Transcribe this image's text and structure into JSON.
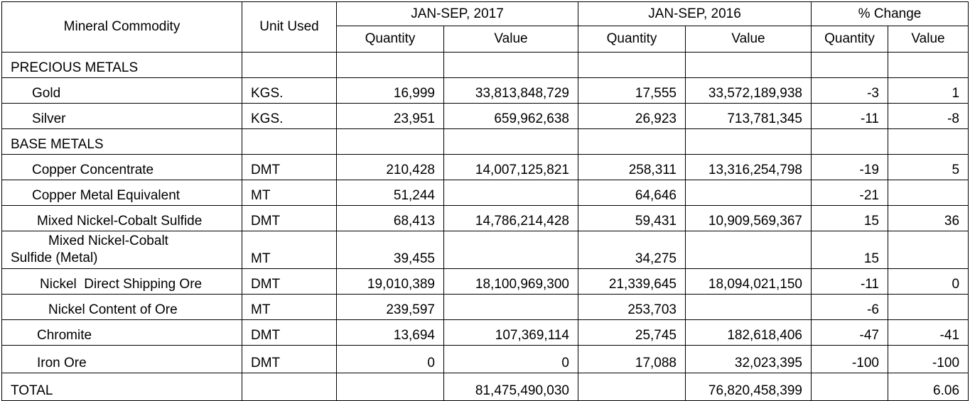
{
  "header": {
    "mineral_commodity": "Mineral Commodity",
    "unit_used": "Unit Used",
    "period_2017": "JAN-SEP, 2017",
    "period_2016": "JAN-SEP, 2016",
    "pct_change": "% Change",
    "quantity": "Quantity",
    "value": "Value"
  },
  "sections": {
    "precious": "PRECIOUS METALS",
    "base": "BASE METALS"
  },
  "rows": [
    {
      "name": "Gold",
      "unit": "KGS.",
      "q2017": "16,999",
      "v2017": "33,813,848,729",
      "q2016": "17,555",
      "v2016": "33,572,189,938",
      "pq": "-3",
      "pv": "1"
    },
    {
      "name": "Silver",
      "unit": "KGS.",
      "q2017": "23,951",
      "v2017": "659,962,638",
      "q2016": "26,923",
      "v2016": "713,781,345",
      "pq": "-11",
      "pv": "-8"
    },
    {
      "name": "Copper Concentrate",
      "unit": "DMT",
      "q2017": "210,428",
      "v2017": "14,007,125,821",
      "q2016": "258,311",
      "v2016": "13,316,254,798",
      "pq": "-19",
      "pv": "5"
    },
    {
      "name": "Copper Metal Equivalent",
      "unit": "MT",
      "q2017": "51,244",
      "v2017": "",
      "q2016": "64,646",
      "v2016": "",
      "pq": "-21",
      "pv": ""
    },
    {
      "name": "Mixed Nickel-Cobalt Sulfide",
      "unit": "DMT",
      "q2017": "68,413",
      "v2017": "14,786,214,428",
      "q2016": "59,431",
      "v2016": "10,909,569,367",
      "pq": "15",
      "pv": "36"
    },
    {
      "name_line1": "Mixed Nickel-Cobalt",
      "name_line2": "Sulfide (Metal)",
      "unit": "MT",
      "q2017": "39,455",
      "v2017": "",
      "q2016": "34,275",
      "v2016": "",
      "pq": "15",
      "pv": ""
    },
    {
      "name": "Nickel  Direct Shipping Ore",
      "unit": "DMT",
      "q2017": "19,010,389",
      "v2017": "18,100,969,300",
      "q2016": "21,339,645",
      "v2016": "18,094,021,150",
      "pq": "-11",
      "pv": "0"
    },
    {
      "name": "Nickel Content of Ore",
      "unit": "MT",
      "q2017": "239,597",
      "v2017": "",
      "q2016": "253,703",
      "v2016": "",
      "pq": "-6",
      "pv": ""
    },
    {
      "name": "Chromite",
      "unit": "DMT",
      "q2017": "13,694",
      "v2017": "107,369,114",
      "q2016": "25,745",
      "v2016": "182,618,406",
      "pq": "-47",
      "pv": "-41"
    },
    {
      "name": "Iron Ore",
      "unit": "DMT",
      "q2017": "0",
      "v2017": "0",
      "q2016": "17,088",
      "v2016": "32,023,395",
      "pq": "-100",
      "pv": "-100"
    }
  ],
  "total": {
    "label": "TOTAL",
    "v2017": "81,475,490,030",
    "v2016": "76,820,458,399",
    "pv": "6.06"
  }
}
